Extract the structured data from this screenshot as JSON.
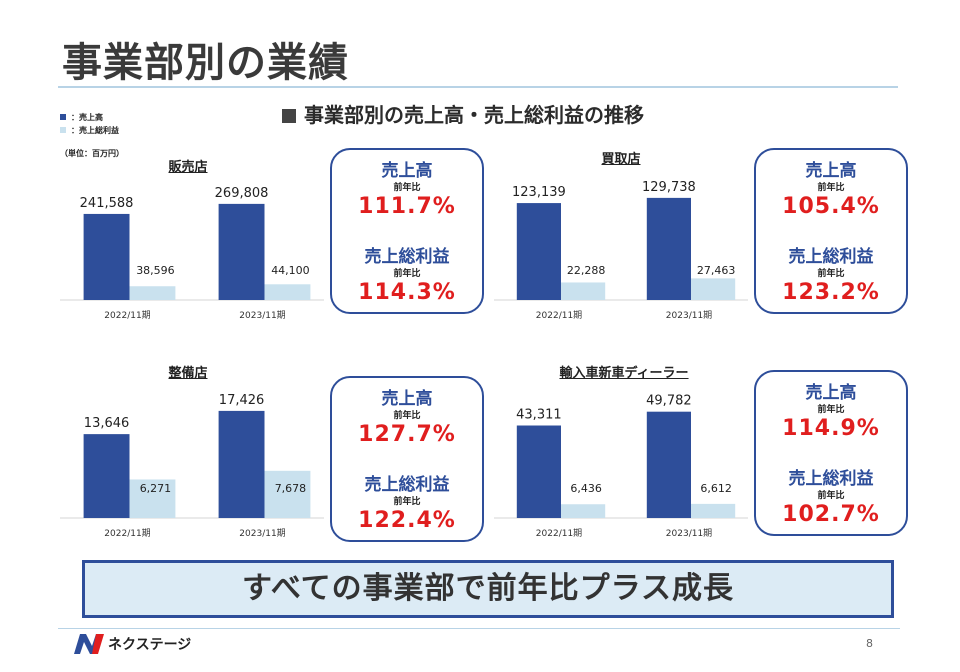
{
  "page": {
    "title": "事業部別の業績",
    "subtitle": "事業部別の売上高・売上総利益の推移",
    "page_number": "8"
  },
  "legend": {
    "items": [
      {
        "label": "：売上高",
        "color": "#2e4e9a"
      },
      {
        "label": "：売上総利益",
        "color": "#c9e1ee"
      }
    ],
    "unit": "（単位：百万円）"
  },
  "colors": {
    "sales": "#2e4e9a",
    "gross": "#c9e1ee",
    "accent_red": "#e01e1e",
    "box_border": "#2e4e9a",
    "banner_bg": "#dcebf5"
  },
  "chart_data": [
    {
      "type": "bar",
      "title": "販売店",
      "categories": [
        "2022/11期",
        "2023/11期"
      ],
      "series": [
        {
          "name": "売上高",
          "values": [
            241588,
            269808
          ]
        },
        {
          "name": "売上総利益",
          "values": [
            38596,
            44100
          ]
        }
      ],
      "value_labels": {
        "sales": [
          "241,588",
          "269,808"
        ],
        "gross": [
          "38,596",
          "44,100"
        ]
      },
      "ylim": [
        0,
        320000
      ],
      "yoy": {
        "sales_label": "売上高",
        "sub": "前年比",
        "sales": "111.7%",
        "gross_label": "売上総利益",
        "gross": "114.3%"
      }
    },
    {
      "type": "bar",
      "title": "買取店",
      "categories": [
        "2022/11期",
        "2023/11期"
      ],
      "series": [
        {
          "name": "売上高",
          "values": [
            123139,
            129738
          ]
        },
        {
          "name": "売上総利益",
          "values": [
            22288,
            27463
          ]
        }
      ],
      "value_labels": {
        "sales": [
          "123,139",
          "129,738"
        ],
        "gross": [
          "22,288",
          "27,463"
        ]
      },
      "ylim": [
        0,
        155000
      ],
      "yoy": {
        "sales_label": "売上高",
        "sub": "前年比",
        "sales": "105.4%",
        "gross_label": "売上総利益",
        "gross": "123.2%"
      }
    },
    {
      "type": "bar",
      "title": "整備店",
      "categories": [
        "2022/11期",
        "2023/11期"
      ],
      "series": [
        {
          "name": "売上高",
          "values": [
            13646,
            17426
          ]
        },
        {
          "name": "売上総利益",
          "values": [
            6271,
            7678
          ]
        }
      ],
      "value_labels": {
        "sales": [
          "13,646",
          "17,426"
        ],
        "gross": [
          "6,271",
          "7,678"
        ]
      },
      "ylim": [
        0,
        20500
      ],
      "yoy": {
        "sales_label": "売上高",
        "sub": "前年比",
        "sales": "127.7%",
        "gross_label": "売上総利益",
        "gross": "122.4%"
      }
    },
    {
      "type": "bar",
      "title": "輸入車新車ディーラー",
      "categories": [
        "2022/11期",
        "2023/11期"
      ],
      "series": [
        {
          "name": "売上高",
          "values": [
            43311,
            49782
          ]
        },
        {
          "name": "売上総利益",
          "values": [
            6436,
            6612
          ]
        }
      ],
      "value_labels": {
        "sales": [
          "43,311",
          "49,782"
        ],
        "gross": [
          "6,436",
          "6,612"
        ]
      },
      "ylim": [
        0,
        59000
      ],
      "yoy": {
        "sales_label": "売上高",
        "sub": "前年比",
        "sales": "114.9%",
        "gross_label": "売上総利益",
        "gross": "102.7%"
      }
    }
  ],
  "banner": {
    "text": "すべての事業部で前年比プラス成長"
  },
  "footer": {
    "logo_text": "ネクステージ"
  }
}
